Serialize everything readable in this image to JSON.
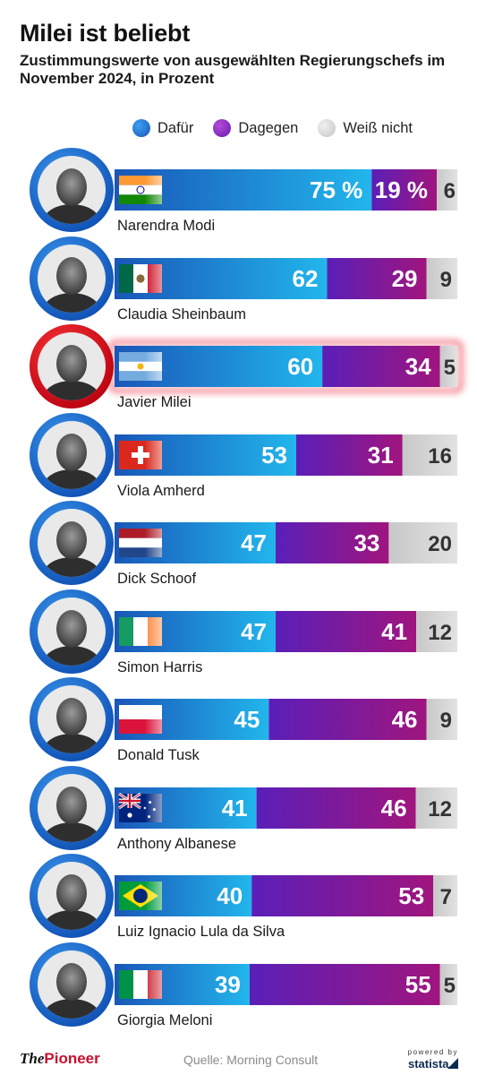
{
  "header": {
    "title": "Milei ist beliebt",
    "subtitle": "Zustimmungswerte von ausgewählten Regierungschefs im November 2024, in Prozent"
  },
  "legend": [
    {
      "label": "Dafür",
      "color": "#1e6fd9"
    },
    {
      "label": "Dagegen",
      "color": "#8a1fb0"
    },
    {
      "label": "Weiß nicht",
      "color": "#cccccc"
    }
  ],
  "colors": {
    "for_start": "#1a56b8",
    "for_end": "#22b6ec",
    "against_start": "#5a1fb8",
    "against_end": "#a0157e",
    "unknown": "#d3d3d3",
    "highlight": "#e8001c",
    "avatar_ring": "#1a6fd6"
  },
  "chart_data": {
    "type": "bar",
    "stacked": true,
    "orientation": "horizontal",
    "title": "Milei ist beliebt",
    "subtitle": "Zustimmungswerte von ausgewählten Regierungschefs im November 2024, in Prozent",
    "categories": [
      "Narendra Modi",
      "Claudia Sheinbaum",
      "Javier Milei",
      "Viola Amherd",
      "Dick Schoof",
      "Simon Harris",
      "Donald Tusk",
      "Anthony Albanese",
      "Luiz Ignacio Lula da Silva",
      "Giorgia Meloni"
    ],
    "series": [
      {
        "name": "Dafür",
        "values": [
          75,
          62,
          60,
          53,
          47,
          47,
          45,
          41,
          40,
          39
        ]
      },
      {
        "name": "Dagegen",
        "values": [
          19,
          29,
          34,
          31,
          33,
          41,
          46,
          46,
          53,
          55
        ]
      },
      {
        "name": "Weiß nicht",
        "values": [
          6,
          9,
          5,
          16,
          20,
          12,
          9,
          12,
          7,
          5
        ]
      }
    ],
    "first_row_labels": {
      "for": "75 %",
      "against": "19 %",
      "unknown": "6"
    },
    "highlighted": "Javier Milei",
    "countries": [
      "india",
      "mexico",
      "argentina",
      "switzerland",
      "netherlands",
      "ireland",
      "poland",
      "australia",
      "brazil",
      "italy"
    ],
    "xlim": [
      0,
      100
    ],
    "legend_position": "top"
  },
  "footer": {
    "logo_the": "The",
    "logo_pioneer": "Pioneer",
    "source": "Quelle: Morning Consult",
    "powered_by": "powered by",
    "statista": "statista"
  }
}
